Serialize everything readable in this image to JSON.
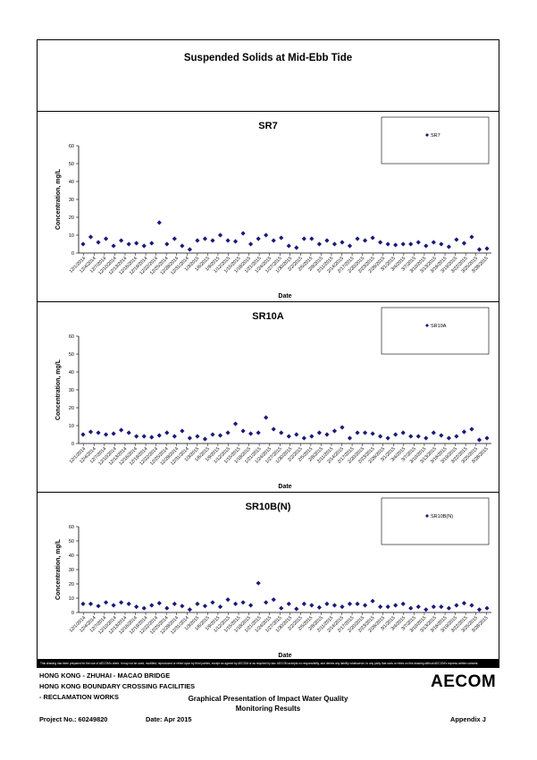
{
  "report": {
    "title": "Suspended Solids at Mid-Ebb Tide",
    "disclaimer": "This drawing has been prepared for the use of AECOM's client. It may not be used, modified, reproduced or relied upon by third parties, except as agreed by AECOM or as required by law. AECOM accepts no responsibility, and denies any liability whatsoever, to any party that uses or relies on this drawing without AECOM's express written consent.",
    "footer": {
      "project_line1": "HONG KONG - ZHUHAI - MACAO BRIDGE",
      "project_line2": "HONG KONG BOUNDARY CROSSING FACILITIES",
      "project_line3": "- RECLAMATION WORKS",
      "project_no": "Project No.: 60249820",
      "date": "Date: Apr 2015",
      "center_line1": "Graphical Presentation of Impact Water Quality",
      "center_line2": "Monitoring Results",
      "appendix": "Appendix J",
      "logo": "AECOM"
    }
  },
  "chart_data": [
    {
      "type": "scatter",
      "title": "SR7",
      "xlabel": "Date",
      "ylabel": "Concentration, mg/L",
      "ylim": [
        0,
        60
      ],
      "yticks": [
        0,
        10,
        20,
        30,
        40,
        50,
        60
      ],
      "xticks": [
        "12/1/2014",
        "12/4/2014",
        "12/7/2014",
        "12/10/2014",
        "12/13/2014",
        "12/16/2014",
        "12/19/2014",
        "12/22/2014",
        "12/25/2014",
        "12/28/2014",
        "12/31/2014",
        "1/3/2015",
        "1/6/2015",
        "1/9/2015",
        "1/12/2015",
        "1/15/2015",
        "1/18/2015",
        "1/21/2015",
        "1/24/2015",
        "1/27/2015",
        "1/30/2015",
        "2/2/2015",
        "2/5/2015",
        "2/8/2015",
        "2/11/2015",
        "2/14/2015",
        "2/17/2015",
        "2/20/2015",
        "2/23/2015",
        "2/26/2015",
        "3/1/2015",
        "3/4/2015",
        "3/7/2015",
        "3/10/2015",
        "3/13/2015",
        "3/16/2015",
        "3/19/2015",
        "3/22/2015",
        "3/25/2015",
        "3/28/2015"
      ],
      "grid": false,
      "legend": "top-right",
      "series": [
        {
          "name": "SR7",
          "color": "#1a1a7a",
          "values": [
            5,
            9,
            6,
            8,
            4,
            7,
            5,
            5.5,
            4,
            5.5,
            17,
            5,
            8,
            4,
            2,
            7,
            8,
            7,
            10,
            7,
            6.5,
            11,
            5,
            8,
            10,
            7,
            8.5,
            4,
            3,
            8,
            8,
            5,
            7,
            5,
            6,
            4,
            8,
            7,
            8.5,
            6,
            5,
            4.5,
            5,
            5,
            6,
            4,
            6,
            5,
            3.5,
            7.5,
            5.5,
            9,
            2,
            2.5
          ]
        }
      ]
    },
    {
      "type": "scatter",
      "title": "SR10A",
      "xlabel": "Date",
      "ylabel": "Concentration, mg/L",
      "ylim": [
        0,
        60
      ],
      "yticks": [
        0,
        10,
        20,
        30,
        40,
        50,
        60
      ],
      "xticks": [
        "12/1/2014",
        "12/4/2014",
        "12/7/2014",
        "12/10/2014",
        "12/13/2014",
        "12/16/2014",
        "12/19/2014",
        "12/22/2014",
        "12/25/2014",
        "12/28/2014",
        "12/31/2014",
        "1/3/2015",
        "1/6/2015",
        "1/9/2015",
        "1/12/2015",
        "1/15/2015",
        "1/18/2015",
        "1/21/2015",
        "1/24/2015",
        "1/27/2015",
        "1/30/2015",
        "2/2/2015",
        "2/5/2015",
        "2/8/2015",
        "2/11/2015",
        "2/14/2015",
        "2/17/2015",
        "2/20/2015",
        "2/23/2015",
        "2/26/2015",
        "3/1/2015",
        "3/4/2015",
        "3/7/2015",
        "3/10/2015",
        "3/13/2015",
        "3/16/2015",
        "3/19/2015",
        "3/22/2015",
        "3/25/2015",
        "3/28/2015"
      ],
      "grid": false,
      "legend": "top-right",
      "series": [
        {
          "name": "SR10A",
          "color": "#1a1a7a",
          "values": [
            5,
            6.5,
            6,
            5,
            5.5,
            7.5,
            6,
            4,
            4,
            3.5,
            4.5,
            6,
            4,
            7,
            3,
            4,
            2.5,
            5,
            4.5,
            6,
            11,
            7,
            5.5,
            6,
            14.5,
            8,
            6,
            4,
            5,
            3,
            4,
            6,
            5,
            7,
            9,
            3,
            6,
            6,
            5.5,
            4,
            3,
            5,
            6,
            4,
            4,
            3,
            6,
            4.5,
            3,
            4,
            6.5,
            8,
            2,
            3
          ]
        }
      ]
    },
    {
      "type": "scatter",
      "title": "SR10B(N)",
      "xlabel": "Date",
      "ylabel": "Concentration, mg/L",
      "ylim": [
        0,
        60
      ],
      "yticks": [
        0,
        10,
        20,
        30,
        40,
        50,
        60
      ],
      "xticks": [
        "12/1/2014",
        "12/4/2014",
        "12/7/2014",
        "12/10/2014",
        "12/13/2014",
        "12/16/2014",
        "12/19/2014",
        "12/22/2014",
        "12/25/2014",
        "12/28/2014",
        "12/31/2014",
        "1/3/2015",
        "1/6/2015",
        "1/9/2015",
        "1/12/2015",
        "1/15/2015",
        "1/18/2015",
        "1/21/2015",
        "1/24/2015",
        "1/27/2015",
        "1/30/2015",
        "2/2/2015",
        "2/5/2015",
        "2/8/2015",
        "2/11/2015",
        "2/14/2015",
        "2/17/2015",
        "2/20/2015",
        "2/23/2015",
        "2/26/2015",
        "3/1/2015",
        "3/4/2015",
        "3/7/2015",
        "3/10/2015",
        "3/13/2015",
        "3/16/2015",
        "3/19/2015",
        "3/22/2015",
        "3/25/2015",
        "3/28/2015"
      ],
      "grid": false,
      "legend": "top-right",
      "series": [
        {
          "name": "SR10B(N)",
          "color": "#1a1a7a",
          "values": [
            6,
            6,
            4.5,
            7,
            5,
            7,
            6,
            4,
            3,
            5,
            6.5,
            3,
            6,
            4.5,
            2,
            6,
            4.5,
            7,
            4,
            9,
            6,
            7,
            5,
            20.5,
            7,
            9,
            3,
            6,
            2.5,
            6,
            5,
            3.5,
            6,
            5,
            4,
            6,
            6,
            5,
            8,
            4,
            4,
            5,
            6,
            3,
            4,
            2,
            4,
            4,
            3,
            5,
            6.5,
            5,
            2,
            3
          ]
        }
      ]
    }
  ]
}
